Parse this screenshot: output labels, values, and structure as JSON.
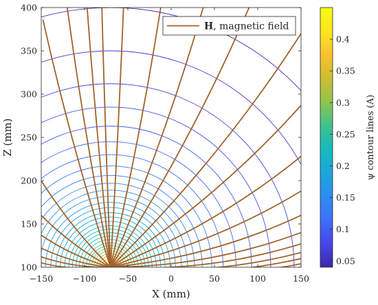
{
  "chart_data": {
    "type": "line",
    "title": "",
    "xlabel": "X (mm)",
    "ylabel": "Z (mm)",
    "xlim": [
      -150,
      150
    ],
    "ylim": [
      100,
      400
    ],
    "x_ticks": [
      "−150",
      "−100",
      "−50",
      "0",
      "50",
      "100",
      "150"
    ],
    "y_ticks": [
      "100",
      "150",
      "200",
      "250",
      "300",
      "350",
      "400"
    ],
    "grid": false,
    "dipole_center": [
      -70,
      100
    ],
    "legend": {
      "position": "top-right",
      "entry_bold": "H",
      "entry_text": ", magnetic field",
      "color": "#a0622a"
    },
    "field_line_color": "#a0622a",
    "field_line_exit_x": [
      -150,
      -150,
      -150,
      -150,
      -150,
      -150,
      -148,
      -120,
      -97,
      -80,
      -55,
      -12,
      37,
      90,
      150,
      150,
      150,
      150,
      150,
      150,
      150,
      150,
      150,
      150
    ],
    "field_line_exit_z": [
      105,
      112,
      122,
      137,
      160,
      200,
      386,
      400,
      400,
      400,
      400,
      400,
      400,
      400,
      370,
      287,
      228,
      188,
      160,
      140,
      127,
      117,
      110,
      104
    ],
    "contour_radii_mm": [
      300,
      250,
      212,
      185,
      163,
      145,
      130,
      117,
      106,
      97,
      89,
      82,
      75,
      69,
      63,
      58,
      53,
      48,
      44,
      40,
      36,
      32,
      28,
      25,
      22,
      19,
      16,
      13,
      10,
      7,
      5
    ],
    "colorbar": {
      "label": "ψ contour lines (A)",
      "min": 0.04,
      "max": 0.45,
      "ticks": [
        "0.05",
        "0.1",
        "0.15",
        "0.2",
        "0.25",
        "0.3",
        "0.35",
        "0.4"
      ],
      "tick_values": [
        0.05,
        0.1,
        0.15,
        0.2,
        0.25,
        0.3,
        0.35,
        0.4
      ],
      "colormap": "parula",
      "colormap_stops": [
        "#3e26a8",
        "#4746eb",
        "#3e6ffe",
        "#2c8ef2",
        "#1ba7da",
        "#17b9be",
        "#3fc190",
        "#8fc44d",
        "#cdbd30",
        "#f9c130",
        "#fbe61f",
        "#f9fb0e"
      ]
    }
  }
}
